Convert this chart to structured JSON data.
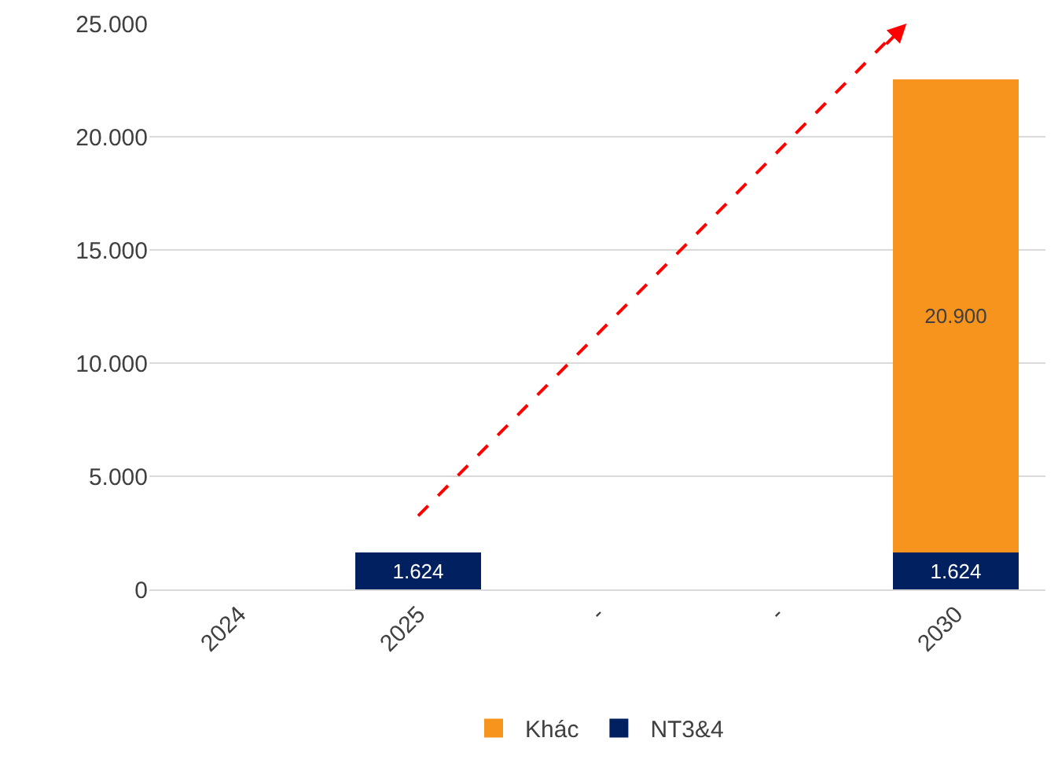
{
  "chart_data": {
    "type": "bar",
    "stacked": true,
    "categories": [
      "2024",
      "2025",
      "-",
      "-",
      "2030"
    ],
    "series": [
      {
        "name": "NT3&4",
        "color": "#002060",
        "values": [
          null,
          1624,
          null,
          null,
          1624
        ],
        "value_labels": [
          null,
          "1.624",
          null,
          null,
          "1.624"
        ]
      },
      {
        "name": "Khác",
        "color": "#f7941d",
        "values": [
          null,
          null,
          null,
          null,
          20900
        ],
        "value_labels": [
          null,
          null,
          null,
          null,
          "20.900"
        ]
      }
    ],
    "ylim": [
      0,
      25000
    ],
    "yticks": [
      {
        "value": 0,
        "label": "0"
      },
      {
        "value": 5000,
        "label": "5.000"
      },
      {
        "value": 10000,
        "label": "10.000"
      },
      {
        "value": 15000,
        "label": "15.000"
      },
      {
        "value": 20000,
        "label": "20.000"
      },
      {
        "value": 25000,
        "label": "25.000"
      }
    ],
    "grid": "y",
    "legend": "bottom"
  }
}
